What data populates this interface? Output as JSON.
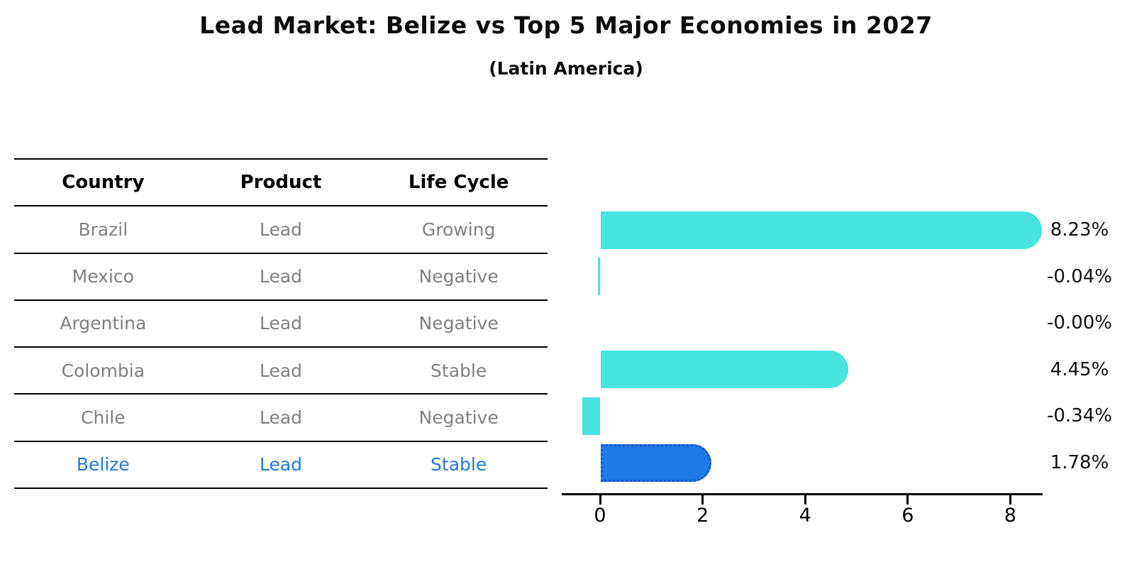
{
  "title": "Lead Market: Belize vs Top 5 Major Economies in 2027",
  "subtitle": "(Latin America)",
  "table": {
    "headers": [
      "Country",
      "Product",
      "Life Cycle"
    ],
    "rows": [
      {
        "country": "Brazil",
        "product": "Lead",
        "life_cycle": "Growing",
        "highlight": false
      },
      {
        "country": "Mexico",
        "product": "Lead",
        "life_cycle": "Negative",
        "highlight": false
      },
      {
        "country": "Argentina",
        "product": "Lead",
        "life_cycle": "Negative",
        "highlight": false
      },
      {
        "country": "Colombia",
        "product": "Lead",
        "life_cycle": "Stable",
        "highlight": false
      },
      {
        "country": "Chile",
        "product": "Lead",
        "life_cycle": "Negative",
        "highlight": false
      },
      {
        "country": "Belize",
        "product": "Lead",
        "life_cycle": "Stable",
        "highlight": true
      }
    ]
  },
  "chart_data": {
    "type": "bar",
    "orientation": "horizontal",
    "title": "Lead Market: Belize vs Top 5 Major Economies in 2027",
    "subtitle": "(Latin America)",
    "categories": [
      "Brazil",
      "Mexico",
      "Argentina",
      "Colombia",
      "Chile",
      "Belize"
    ],
    "values": [
      8.23,
      -0.04,
      -0.0,
      4.45,
      -0.34,
      1.78
    ],
    "value_labels": [
      "8.23%",
      "-0.04%",
      "-0.00%",
      "4.45%",
      "-0.34%",
      "1.78%"
    ],
    "x_ticks": [
      0,
      2,
      4,
      6,
      8
    ],
    "xlim": [
      -0.8,
      8.65
    ],
    "unit": "percent",
    "grid": false,
    "legend": "none",
    "highlight_index": 5
  },
  "colors": {
    "bar": "#48e4de",
    "highlight_bar_fill": "#207ae5",
    "highlight_bar_border": "#1453c4",
    "highlight_text": "#2079dc",
    "table_text": "#808080",
    "header_text": "#000000",
    "axis": "#000000",
    "label_text": "#111111"
  }
}
